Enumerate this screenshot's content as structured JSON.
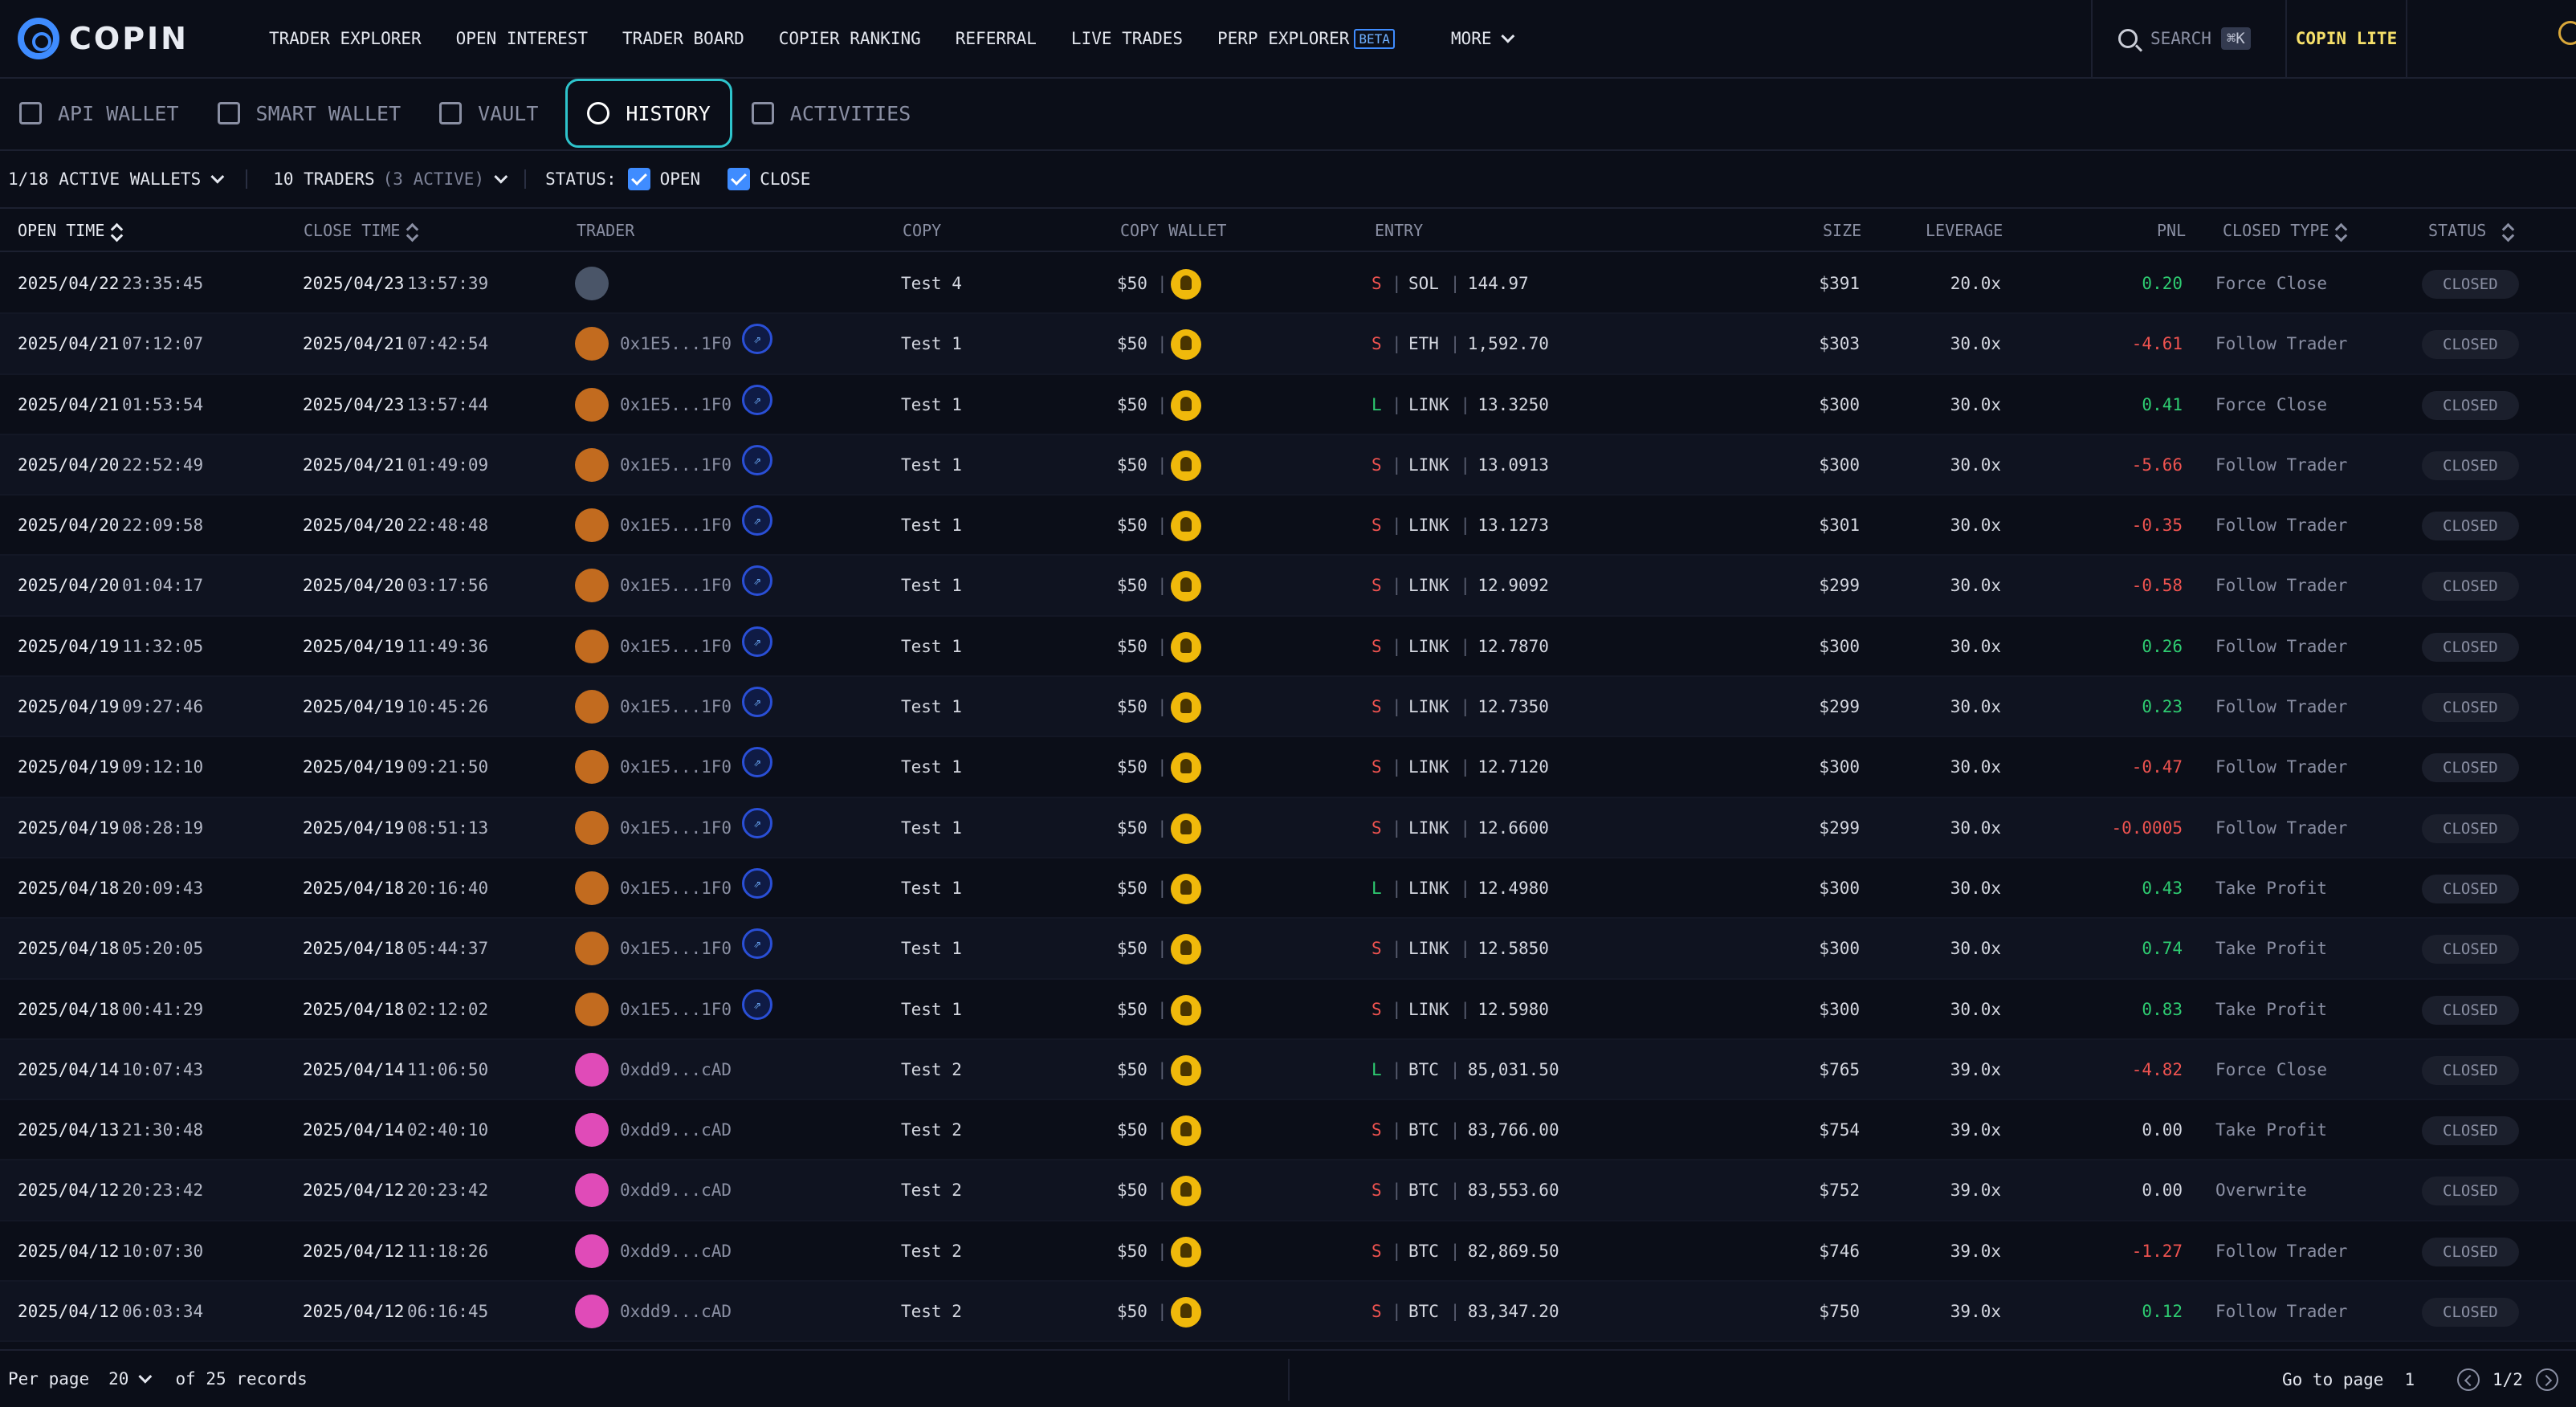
{
  "app": {
    "brand": "COPIN",
    "nav": [
      {
        "label": "TRADER EXPLORER"
      },
      {
        "label": "OPEN INTEREST"
      },
      {
        "label": "TRADER BOARD"
      },
      {
        "label": "COPIER RANKING"
      },
      {
        "label": "REFERRAL"
      },
      {
        "label": "LIVE TRADES"
      },
      {
        "label": "PERP EXPLORER",
        "badge": "BETA"
      }
    ],
    "more_label": "MORE",
    "search_label": "SEARCH",
    "search_shortcut": "⌘K",
    "lite_label": "COPIN LITE"
  },
  "subnav": [
    {
      "label": "API WALLET",
      "icon": "wallet-icon"
    },
    {
      "label": "SMART WALLET",
      "icon": "smart-wallet-icon"
    },
    {
      "label": "VAULT",
      "icon": "vault-icon"
    },
    {
      "label": "HISTORY",
      "icon": "history-icon",
      "active": true
    },
    {
      "label": "ACTIVITIES",
      "icon": "activities-icon"
    }
  ],
  "filters": {
    "wallets": "1/18 ACTIVE WALLETS",
    "traders": "10 TRADERS",
    "traders_active": "(3 ACTIVE)",
    "status_label": "STATUS:",
    "open_label": "OPEN",
    "close_label": "CLOSE"
  },
  "columns": {
    "open_time": "OPEN TIME",
    "close_time": "CLOSE TIME",
    "trader": "TRADER",
    "copy": "COPY",
    "copy_wallet": "COPY WALLET",
    "entry": "ENTRY",
    "size": "SIZE",
    "leverage": "LEVERAGE",
    "pnl": "PNL",
    "closed_type": "CLOSED TYPE",
    "status": "STATUS"
  },
  "rows": [
    {
      "open_date": "2025/04/22",
      "open_time": "23:35:45",
      "close_date": "2025/04/23",
      "close_time": "13:57:39",
      "trader": "",
      "avatar": "#4a5568",
      "proto": false,
      "copy": "Test 4",
      "wallet": "$50",
      "side": "S",
      "pair": "SOL",
      "price": "144.97",
      "size": "$391",
      "leverage": "20.0x",
      "pnl": "0.20",
      "pnl_sign": "pos",
      "closed_type": "Force Close",
      "status": "CLOSED"
    },
    {
      "open_date": "2025/04/21",
      "open_time": "07:12:07",
      "close_date": "2025/04/21",
      "close_time": "07:42:54",
      "trader": "0x1E5...1F0",
      "avatar": "#c26b1f",
      "proto": true,
      "copy": "Test 1",
      "wallet": "$50",
      "side": "S",
      "pair": "ETH",
      "price": "1,592.70",
      "size": "$303",
      "leverage": "30.0x",
      "pnl": "-4.61",
      "pnl_sign": "neg",
      "closed_type": "Follow Trader",
      "status": "CLOSED"
    },
    {
      "open_date": "2025/04/21",
      "open_time": "01:53:54",
      "close_date": "2025/04/23",
      "close_time": "13:57:44",
      "trader": "0x1E5...1F0",
      "avatar": "#c26b1f",
      "proto": true,
      "copy": "Test 1",
      "wallet": "$50",
      "side": "L",
      "pair": "LINK",
      "price": "13.3250",
      "size": "$300",
      "leverage": "30.0x",
      "pnl": "0.41",
      "pnl_sign": "pos",
      "closed_type": "Force Close",
      "status": "CLOSED"
    },
    {
      "open_date": "2025/04/20",
      "open_time": "22:52:49",
      "close_date": "2025/04/21",
      "close_time": "01:49:09",
      "trader": "0x1E5...1F0",
      "avatar": "#c26b1f",
      "proto": true,
      "copy": "Test 1",
      "wallet": "$50",
      "side": "S",
      "pair": "LINK",
      "price": "13.0913",
      "size": "$300",
      "leverage": "30.0x",
      "pnl": "-5.66",
      "pnl_sign": "neg",
      "closed_type": "Follow Trader",
      "status": "CLOSED"
    },
    {
      "open_date": "2025/04/20",
      "open_time": "22:09:58",
      "close_date": "2025/04/20",
      "close_time": "22:48:48",
      "trader": "0x1E5...1F0",
      "avatar": "#c26b1f",
      "proto": true,
      "copy": "Test 1",
      "wallet": "$50",
      "side": "S",
      "pair": "LINK",
      "price": "13.1273",
      "size": "$301",
      "leverage": "30.0x",
      "pnl": "-0.35",
      "pnl_sign": "neg",
      "closed_type": "Follow Trader",
      "status": "CLOSED"
    },
    {
      "open_date": "2025/04/20",
      "open_time": "01:04:17",
      "close_date": "2025/04/20",
      "close_time": "03:17:56",
      "trader": "0x1E5...1F0",
      "avatar": "#c26b1f",
      "proto": true,
      "copy": "Test 1",
      "wallet": "$50",
      "side": "S",
      "pair": "LINK",
      "price": "12.9092",
      "size": "$299",
      "leverage": "30.0x",
      "pnl": "-0.58",
      "pnl_sign": "neg",
      "closed_type": "Follow Trader",
      "status": "CLOSED"
    },
    {
      "open_date": "2025/04/19",
      "open_time": "11:32:05",
      "close_date": "2025/04/19",
      "close_time": "11:49:36",
      "trader": "0x1E5...1F0",
      "avatar": "#c26b1f",
      "proto": true,
      "copy": "Test 1",
      "wallet": "$50",
      "side": "S",
      "pair": "LINK",
      "price": "12.7870",
      "size": "$300",
      "leverage": "30.0x",
      "pnl": "0.26",
      "pnl_sign": "pos",
      "closed_type": "Follow Trader",
      "status": "CLOSED"
    },
    {
      "open_date": "2025/04/19",
      "open_time": "09:27:46",
      "close_date": "2025/04/19",
      "close_time": "10:45:26",
      "trader": "0x1E5...1F0",
      "avatar": "#c26b1f",
      "proto": true,
      "copy": "Test 1",
      "wallet": "$50",
      "side": "S",
      "pair": "LINK",
      "price": "12.7350",
      "size": "$299",
      "leverage": "30.0x",
      "pnl": "0.23",
      "pnl_sign": "pos",
      "closed_type": "Follow Trader",
      "status": "CLOSED"
    },
    {
      "open_date": "2025/04/19",
      "open_time": "09:12:10",
      "close_date": "2025/04/19",
      "close_time": "09:21:50",
      "trader": "0x1E5...1F0",
      "avatar": "#c26b1f",
      "proto": true,
      "copy": "Test 1",
      "wallet": "$50",
      "side": "S",
      "pair": "LINK",
      "price": "12.7120",
      "size": "$300",
      "leverage": "30.0x",
      "pnl": "-0.47",
      "pnl_sign": "neg",
      "closed_type": "Follow Trader",
      "status": "CLOSED"
    },
    {
      "open_date": "2025/04/19",
      "open_time": "08:28:19",
      "close_date": "2025/04/19",
      "close_time": "08:51:13",
      "trader": "0x1E5...1F0",
      "avatar": "#c26b1f",
      "proto": true,
      "copy": "Test 1",
      "wallet": "$50",
      "side": "S",
      "pair": "LINK",
      "price": "12.6600",
      "size": "$299",
      "leverage": "30.0x",
      "pnl": "-0.0005",
      "pnl_sign": "neg",
      "closed_type": "Follow Trader",
      "status": "CLOSED"
    },
    {
      "open_date": "2025/04/18",
      "open_time": "20:09:43",
      "close_date": "2025/04/18",
      "close_time": "20:16:40",
      "trader": "0x1E5...1F0",
      "avatar": "#c26b1f",
      "proto": true,
      "copy": "Test 1",
      "wallet": "$50",
      "side": "L",
      "pair": "LINK",
      "price": "12.4980",
      "size": "$300",
      "leverage": "30.0x",
      "pnl": "0.43",
      "pnl_sign": "pos",
      "closed_type": "Take Profit",
      "status": "CLOSED"
    },
    {
      "open_date": "2025/04/18",
      "open_time": "05:20:05",
      "close_date": "2025/04/18",
      "close_time": "05:44:37",
      "trader": "0x1E5...1F0",
      "avatar": "#c26b1f",
      "proto": true,
      "copy": "Test 1",
      "wallet": "$50",
      "side": "S",
      "pair": "LINK",
      "price": "12.5850",
      "size": "$300",
      "leverage": "30.0x",
      "pnl": "0.74",
      "pnl_sign": "pos",
      "closed_type": "Take Profit",
      "status": "CLOSED"
    },
    {
      "open_date": "2025/04/18",
      "open_time": "00:41:29",
      "close_date": "2025/04/18",
      "close_time": "02:12:02",
      "trader": "0x1E5...1F0",
      "avatar": "#c26b1f",
      "proto": true,
      "copy": "Test 1",
      "wallet": "$50",
      "side": "S",
      "pair": "LINK",
      "price": "12.5980",
      "size": "$300",
      "leverage": "30.0x",
      "pnl": "0.83",
      "pnl_sign": "pos",
      "closed_type": "Take Profit",
      "status": "CLOSED"
    },
    {
      "open_date": "2025/04/14",
      "open_time": "10:07:43",
      "close_date": "2025/04/14",
      "close_time": "11:06:50",
      "trader": "0xdd9...cAD",
      "avatar": "#e04bb8",
      "proto": false,
      "copy": "Test 2",
      "wallet": "$50",
      "side": "L",
      "pair": "BTC",
      "price": "85,031.50",
      "size": "$765",
      "leverage": "39.0x",
      "pnl": "-4.82",
      "pnl_sign": "neg",
      "closed_type": "Force Close",
      "status": "CLOSED"
    },
    {
      "open_date": "2025/04/13",
      "open_time": "21:30:48",
      "close_date": "2025/04/14",
      "close_time": "02:40:10",
      "trader": "0xdd9...cAD",
      "avatar": "#e04bb8",
      "proto": false,
      "copy": "Test 2",
      "wallet": "$50",
      "side": "S",
      "pair": "BTC",
      "price": "83,766.00",
      "size": "$754",
      "leverage": "39.0x",
      "pnl": "0.00",
      "pnl_sign": "neu",
      "closed_type": "Take Profit",
      "status": "CLOSED"
    },
    {
      "open_date": "2025/04/12",
      "open_time": "20:23:42",
      "close_date": "2025/04/12",
      "close_time": "20:23:42",
      "trader": "0xdd9...cAD",
      "avatar": "#e04bb8",
      "proto": false,
      "copy": "Test 2",
      "wallet": "$50",
      "side": "S",
      "pair": "BTC",
      "price": "83,553.60",
      "size": "$752",
      "leverage": "39.0x",
      "pnl": "0.00",
      "pnl_sign": "neu",
      "closed_type": "Overwrite",
      "status": "CLOSED"
    },
    {
      "open_date": "2025/04/12",
      "open_time": "10:07:30",
      "close_date": "2025/04/12",
      "close_time": "11:18:26",
      "trader": "0xdd9...cAD",
      "avatar": "#e04bb8",
      "proto": false,
      "copy": "Test 2",
      "wallet": "$50",
      "side": "S",
      "pair": "BTC",
      "price": "82,869.50",
      "size": "$746",
      "leverage": "39.0x",
      "pnl": "-1.27",
      "pnl_sign": "neg",
      "closed_type": "Follow Trader",
      "status": "CLOSED"
    },
    {
      "open_date": "2025/04/12",
      "open_time": "06:03:34",
      "close_date": "2025/04/12",
      "close_time": "06:16:45",
      "trader": "0xdd9...cAD",
      "avatar": "#e04bb8",
      "proto": false,
      "copy": "Test 2",
      "wallet": "$50",
      "side": "S",
      "pair": "BTC",
      "price": "83,347.20",
      "size": "$750",
      "leverage": "39.0x",
      "pnl": "0.12",
      "pnl_sign": "pos",
      "closed_type": "Follow Trader",
      "status": "CLOSED"
    }
  ],
  "footer": {
    "per_page_label": "Per page",
    "per_page_value": "20",
    "records": "of 25 records",
    "goto_label": "Go to page",
    "goto_value": "1",
    "page_indicator": "1/2"
  },
  "colors": {
    "accent": "#3f8cff",
    "active_tab": "#2ec4cc",
    "positive": "#2ecc71",
    "negative": "#ef5350",
    "lite": "#f6e06a"
  }
}
